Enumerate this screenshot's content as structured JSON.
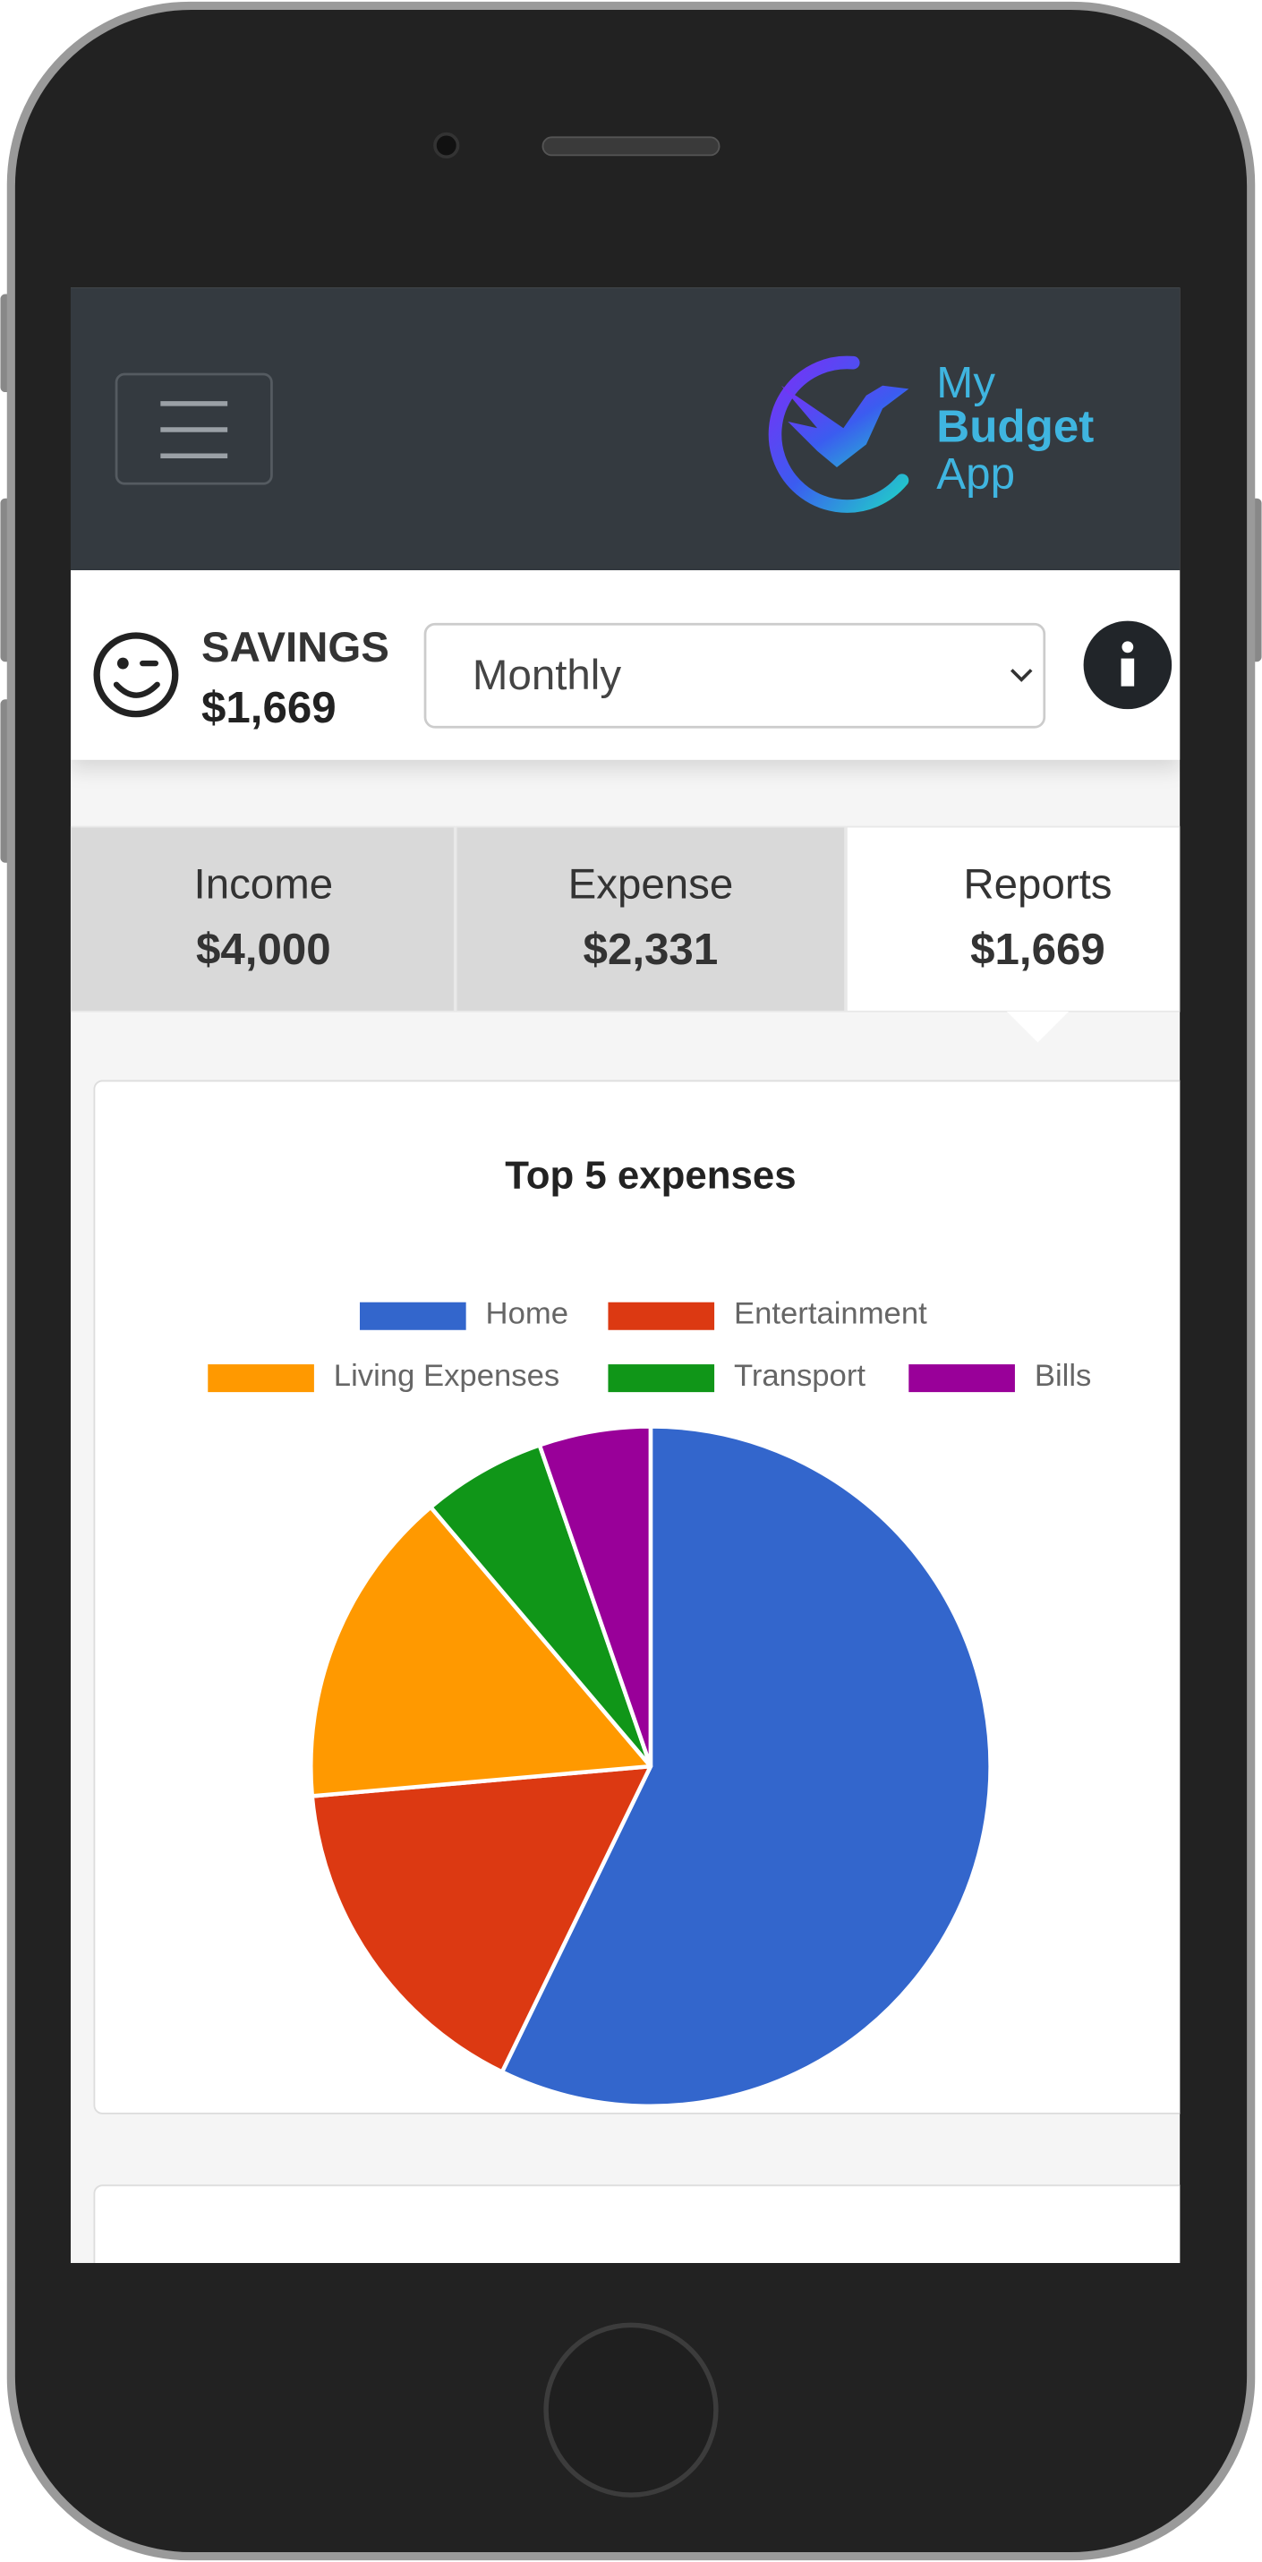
{
  "header": {
    "logo": [
      "My",
      "Budget",
      "App"
    ]
  },
  "savings": {
    "label": "SAVINGS",
    "amount": "$1,669",
    "period": "Monthly"
  },
  "tabs": [
    {
      "label": "Income",
      "amount": "$4,000"
    },
    {
      "label": "Expense",
      "amount": "$2,331"
    },
    {
      "label": "Reports",
      "amount": "$1,669"
    }
  ],
  "chart_data": {
    "type": "pie",
    "title": "Top 5 expenses",
    "categories": [
      "Home",
      "Entertainment",
      "Living Expenses",
      "Transport",
      "Bills"
    ],
    "values": [
      57.2,
      16.4,
      15.2,
      5.9,
      5.3
    ],
    "colors": [
      "#3366cc",
      "#dc3912",
      "#ff9900",
      "#109618",
      "#990099"
    ]
  }
}
